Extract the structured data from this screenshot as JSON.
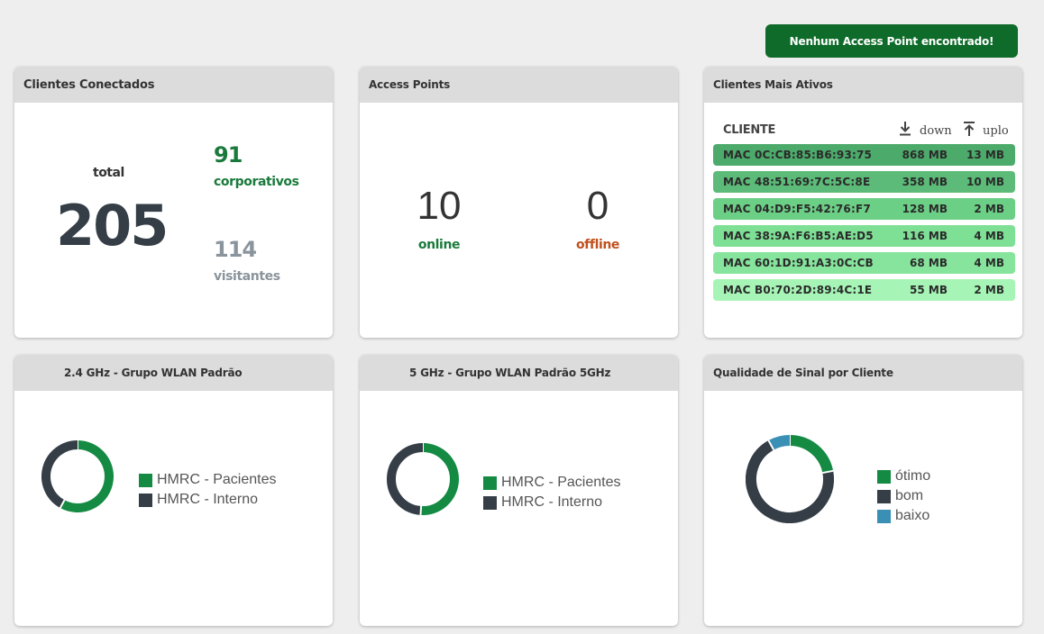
{
  "alert": {
    "label": "Nenhum Access Point encontrado!"
  },
  "clientes_conectados": {
    "title": "Clientes Conectados",
    "total_label": "total",
    "total_value": "205",
    "corporativos_value": "91",
    "corporativos_label": "corporativos",
    "visitantes_value": "114",
    "visitantes_label": "visitantes"
  },
  "access_points": {
    "title": "Access Points",
    "online_value": "10",
    "online_label": "online",
    "offline_value": "0",
    "offline_label": "offline"
  },
  "clientes_ativos": {
    "title": "Clientes Mais Ativos",
    "col_cliente": "CLIENTE",
    "col_down": "down",
    "col_up": "uplo",
    "rows": [
      {
        "mac": "MAC 0C:CB:85:B6:93:75",
        "down": "868 MB",
        "up": "13 MB",
        "color": "#4caa6a"
      },
      {
        "mac": "MAC 48:51:69:7C:5C:8E",
        "down": "358 MB",
        "up": "10 MB",
        "color": "#5cbb78"
      },
      {
        "mac": "MAC 04:D9:F5:42:76:F7",
        "down": "128 MB",
        "up": "2 MB",
        "color": "#6ccf86"
      },
      {
        "mac": "MAC 38:9A:F6:B5:AE:D5",
        "down": "116 MB",
        "up": "4 MB",
        "color": "#7de095"
      },
      {
        "mac": "MAC 60:1D:91:A3:0C:CB",
        "down": "68 MB",
        "up": "4 MB",
        "color": "#86e49c"
      },
      {
        "mac": "MAC B0:70:2D:89:4C:1E",
        "down": "55 MB",
        "up": "2 MB",
        "color": "#a6f5b6"
      }
    ]
  },
  "wlan_24": {
    "title": "2.4 GHz - Grupo WLAN Padrão",
    "legend": [
      "HMRC - Pacientes",
      "HMRC - Interno"
    ],
    "colors": [
      "#148a43",
      "#353e46"
    ],
    "fractions": [
      0.58,
      0.42
    ]
  },
  "wlan_5": {
    "title": "5 GHz - Grupo WLAN Padrão 5GHz",
    "legend": [
      "HMRC - Pacientes",
      "HMRC - Interno"
    ],
    "colors": [
      "#148a43",
      "#353e46"
    ],
    "fractions": [
      0.51,
      0.49
    ]
  },
  "sinal": {
    "title": "Qualidade de Sinal por Cliente",
    "legend": [
      "ótimo",
      "bom",
      "baixo"
    ],
    "colors": [
      "#148a43",
      "#353e46",
      "#3a8fb5"
    ],
    "fractions": [
      0.22,
      0.7,
      0.08
    ]
  }
}
